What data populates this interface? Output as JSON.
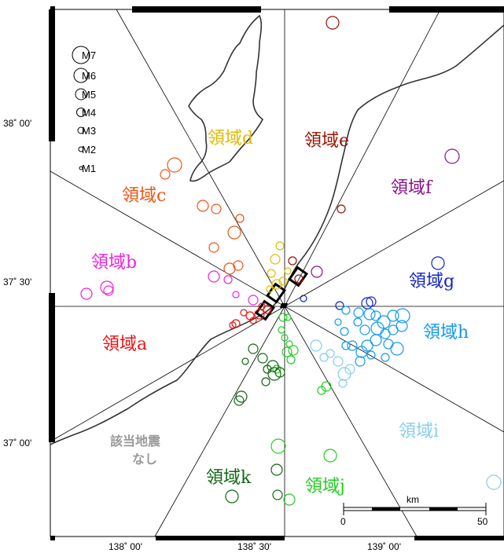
{
  "map": {
    "lat_labels": [
      "38˚ 00'",
      "37˚ 30'",
      "37˚ 00'"
    ],
    "lon_labels": [
      "138˚ 00'",
      "138˚ 30'",
      "139˚ 00'"
    ],
    "magnitude_legend": [
      "M7",
      "M6",
      "M5",
      "M4",
      "M3",
      "M2",
      "M1"
    ],
    "no_events_text": [
      "該当地震",
      "なし"
    ],
    "scale_bar": {
      "unit": "km",
      "min": "0",
      "max": "50"
    }
  },
  "regions": [
    {
      "id": "a",
      "label": "領域a",
      "color": "#ee1111"
    },
    {
      "id": "b",
      "label": "領域b",
      "color": "#ee22dd"
    },
    {
      "id": "c",
      "label": "領域c",
      "color": "#ee5511"
    },
    {
      "id": "d",
      "label": "領域d",
      "color": "#ddbb00"
    },
    {
      "id": "e",
      "label": "領域e",
      "color": "#991100"
    },
    {
      "id": "f",
      "label": "領域f",
      "color": "#881188"
    },
    {
      "id": "g",
      "label": "領域g",
      "color": "#1122cc"
    },
    {
      "id": "h",
      "label": "領域h",
      "color": "#1199ee"
    },
    {
      "id": "i",
      "label": "領域i",
      "color": "#88ccee"
    },
    {
      "id": "j",
      "label": "領域j",
      "color": "#22cc22"
    },
    {
      "id": "k",
      "label": "領域k",
      "color": "#116611"
    }
  ],
  "colors": {
    "coast": "#333333",
    "no_events": "#999999",
    "fault_box": "#000000"
  }
}
